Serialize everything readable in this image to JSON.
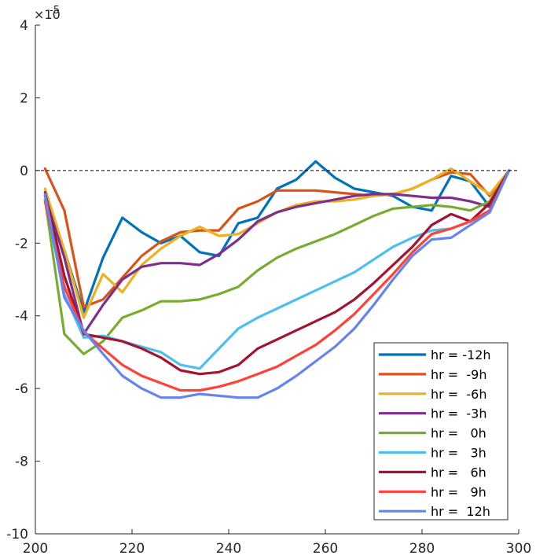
{
  "chart_data": {
    "type": "line",
    "title": "",
    "xlabel": "",
    "ylabel": "",
    "xlim": [
      200,
      300
    ],
    "ylim": [
      -10,
      4
    ],
    "y_exponent_label": "×10",
    "y_exponent_power": "-5",
    "x_ticks": [
      {
        "value": 200,
        "label": "200"
      },
      {
        "value": 220,
        "label": "220"
      },
      {
        "value": 240,
        "label": "240"
      },
      {
        "value": 260,
        "label": "260"
      },
      {
        "value": 280,
        "label": "280"
      },
      {
        "value": 300,
        "label": "300"
      }
    ],
    "y_ticks": [
      {
        "value": 4,
        "label": "4"
      },
      {
        "value": 2,
        "label": "2"
      },
      {
        "value": 0,
        "label": "0"
      },
      {
        "value": -2,
        "label": "-2"
      },
      {
        "value": -4,
        "label": "-4"
      },
      {
        "value": -6,
        "label": "-6"
      },
      {
        "value": -8,
        "label": "-8"
      },
      {
        "value": -10,
        "label": "-10"
      }
    ],
    "reference_line": {
      "y": 0,
      "style": "dashed"
    },
    "grid": false,
    "legend_position": "bottom-right",
    "series": [
      {
        "name": "hr = -12h",
        "color": "#0072BD",
        "x": [
          202,
          206,
          210,
          214,
          218,
          222,
          226,
          230,
          234,
          238,
          242,
          246,
          250,
          254,
          258,
          262,
          266,
          270,
          274,
          278,
          282,
          286,
          290,
          294,
          298
        ],
        "y": [
          -0.8,
          -2.2,
          -3.9,
          -2.4,
          -1.3,
          -1.7,
          -2.0,
          -1.8,
          -2.25,
          -2.35,
          -1.45,
          -1.3,
          -0.5,
          -0.25,
          0.25,
          -0.2,
          -0.5,
          -0.6,
          -0.7,
          -1.0,
          -1.1,
          -0.15,
          -0.3,
          -1.0,
          0.0
        ]
      },
      {
        "name": "hr =  -9h",
        "color": "#D95319",
        "x": [
          202,
          206,
          210,
          214,
          218,
          222,
          226,
          230,
          234,
          238,
          242,
          246,
          250,
          254,
          258,
          262,
          266,
          270,
          274,
          278,
          282,
          286,
          290,
          294,
          298
        ],
        "y": [
          0.05,
          -1.1,
          -3.75,
          -3.55,
          -2.95,
          -2.35,
          -1.95,
          -1.7,
          -1.65,
          -1.65,
          -1.05,
          -0.85,
          -0.55,
          -0.55,
          -0.55,
          -0.6,
          -0.65,
          -0.7,
          -0.65,
          -0.5,
          -0.25,
          -0.05,
          -0.1,
          -0.7,
          0.0
        ]
      },
      {
        "name": "hr =  -6h",
        "color": "#EDB120",
        "x": [
          202,
          206,
          210,
          214,
          218,
          222,
          226,
          230,
          234,
          238,
          242,
          246,
          250,
          254,
          258,
          262,
          266,
          270,
          274,
          278,
          282,
          286,
          290,
          294,
          298
        ],
        "y": [
          -0.5,
          -2.2,
          -4.05,
          -2.85,
          -3.35,
          -2.6,
          -2.15,
          -1.8,
          -1.55,
          -1.8,
          -1.75,
          -1.45,
          -1.15,
          -0.95,
          -0.85,
          -0.85,
          -0.8,
          -0.7,
          -0.65,
          -0.5,
          -0.25,
          0.05,
          -0.3,
          -0.65,
          0.0
        ]
      },
      {
        "name": "hr =  -3h",
        "color": "#7E2F8E",
        "x": [
          202,
          206,
          210,
          214,
          218,
          222,
          226,
          230,
          234,
          238,
          242,
          246,
          250,
          254,
          258,
          262,
          266,
          270,
          274,
          278,
          282,
          286,
          290,
          294,
          298
        ],
        "y": [
          -0.7,
          -2.4,
          -4.5,
          -3.7,
          -3.0,
          -2.65,
          -2.55,
          -2.55,
          -2.6,
          -2.3,
          -1.9,
          -1.4,
          -1.15,
          -1.0,
          -0.9,
          -0.8,
          -0.7,
          -0.65,
          -0.65,
          -0.7,
          -0.75,
          -0.75,
          -0.85,
          -1.0,
          0.0
        ]
      },
      {
        "name": "hr =   0h",
        "color": "#77AC30",
        "x": [
          202,
          206,
          210,
          214,
          218,
          222,
          226,
          230,
          234,
          238,
          242,
          246,
          250,
          254,
          258,
          262,
          266,
          270,
          274,
          278,
          282,
          286,
          290,
          294,
          298
        ],
        "y": [
          -0.8,
          -4.5,
          -5.05,
          -4.7,
          -4.05,
          -3.85,
          -3.6,
          -3.6,
          -3.55,
          -3.4,
          -3.2,
          -2.75,
          -2.4,
          -2.15,
          -1.95,
          -1.75,
          -1.5,
          -1.25,
          -1.05,
          -1.0,
          -0.95,
          -1.0,
          -1.1,
          -0.85,
          0.0
        ]
      },
      {
        "name": "hr =   3h",
        "color": "#4DBEEE",
        "x": [
          202,
          206,
          210,
          214,
          218,
          222,
          226,
          230,
          234,
          238,
          242,
          246,
          250,
          254,
          258,
          262,
          266,
          270,
          274,
          278,
          282,
          286,
          290,
          294,
          298
        ],
        "y": [
          -0.8,
          -3.4,
          -4.6,
          -4.55,
          -4.7,
          -4.85,
          -5.0,
          -5.35,
          -5.45,
          -4.9,
          -4.35,
          -4.05,
          -3.8,
          -3.55,
          -3.3,
          -3.05,
          -2.8,
          -2.45,
          -2.1,
          -1.85,
          -1.65,
          -1.6,
          -1.4,
          -1.15,
          0.0
        ]
      },
      {
        "name": "hr =   6h",
        "color": "#A2142F",
        "x": [
          202,
          206,
          210,
          214,
          218,
          222,
          226,
          230,
          234,
          238,
          242,
          246,
          250,
          254,
          258,
          262,
          266,
          270,
          274,
          278,
          282,
          286,
          290,
          294,
          298
        ],
        "y": [
          -0.6,
          -2.9,
          -4.5,
          -4.6,
          -4.7,
          -4.9,
          -5.15,
          -5.5,
          -5.6,
          -5.55,
          -5.35,
          -4.9,
          -4.65,
          -4.4,
          -4.15,
          -3.9,
          -3.55,
          -3.1,
          -2.6,
          -2.1,
          -1.5,
          -1.2,
          -1.4,
          -0.9,
          0.0
        ]
      },
      {
        "name": "hr =   9h",
        "color": "#FF4136",
        "x": [
          202,
          206,
          210,
          214,
          218,
          222,
          226,
          230,
          234,
          238,
          242,
          246,
          250,
          254,
          258,
          262,
          266,
          270,
          274,
          278,
          282,
          286,
          290,
          294,
          298
        ],
        "y": [
          -0.85,
          -3.2,
          -4.45,
          -4.9,
          -5.35,
          -5.65,
          -5.85,
          -6.05,
          -6.05,
          -5.95,
          -5.8,
          -5.6,
          -5.4,
          -5.1,
          -4.8,
          -4.4,
          -3.95,
          -3.4,
          -2.85,
          -2.25,
          -1.75,
          -1.6,
          -1.4,
          -1.1,
          0.0
        ]
      },
      {
        "name": "hr =  12h",
        "color": "#6584F0",
        "x": [
          202,
          206,
          210,
          214,
          218,
          222,
          226,
          230,
          234,
          238,
          242,
          246,
          250,
          254,
          258,
          262,
          266,
          270,
          274,
          278,
          282,
          286,
          290,
          294,
          298
        ],
        "y": [
          -0.65,
          -3.5,
          -4.4,
          -5.05,
          -5.65,
          -6.0,
          -6.25,
          -6.25,
          -6.15,
          -6.2,
          -6.25,
          -6.25,
          -6.0,
          -5.65,
          -5.25,
          -4.85,
          -4.35,
          -3.7,
          -3.0,
          -2.35,
          -1.9,
          -1.85,
          -1.5,
          -1.15,
          0.0
        ]
      }
    ]
  }
}
